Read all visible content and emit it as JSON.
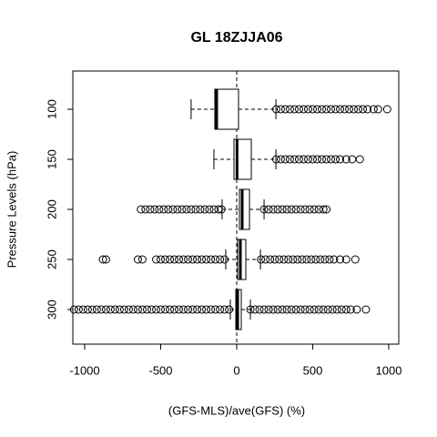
{
  "chart_data": {
    "type": "boxplot",
    "title": "GL 18ZJJA06",
    "xlabel": "(GFS-MLS)/ave(GFS) (%)",
    "ylabel": "Pressure Levels (hPa)",
    "categories": [
      "100",
      "150",
      "200",
      "250",
      "300"
    ],
    "xlim": [
      -1078,
      1066
    ],
    "xticks": [
      -1000,
      -500,
      0,
      500,
      1000
    ],
    "vline": 0,
    "boxes": [
      {
        "whislo": -300,
        "q1": -144,
        "med": -132,
        "q3": 12,
        "whishi": 258,
        "outliers": [
          260,
          290,
          320,
          350,
          380,
          410,
          440,
          470,
          500,
          530,
          560,
          590,
          620,
          650,
          680,
          710,
          740,
          770,
          800,
          830,
          860,
          900,
          930,
          990
        ]
      },
      {
        "whislo": -150,
        "q1": -18,
        "med": 2,
        "q3": 96,
        "whishi": 258,
        "outliers": [
          260,
          290,
          320,
          350,
          380,
          410,
          440,
          470,
          500,
          530,
          560,
          590,
          620,
          650,
          680,
          720,
          760,
          810
        ]
      },
      {
        "whislo": -96,
        "q1": 18,
        "med": 36,
        "q3": 84,
        "whishi": 180,
        "outliers": [
          -630,
          -600,
          -570,
          -540,
          -510,
          -480,
          -450,
          -420,
          -390,
          -360,
          -330,
          -300,
          -270,
          -240,
          -210,
          -180,
          -150,
          -120,
          -100,
          180,
          210,
          240,
          270,
          300,
          330,
          360,
          390,
          420,
          450,
          480,
          510,
          540,
          570,
          590
        ]
      },
      {
        "whislo": -72,
        "q1": 6,
        "med": 24,
        "q3": 60,
        "whishi": 156,
        "outliers": [
          -880,
          -860,
          -650,
          -620,
          -530,
          -500,
          -470,
          -440,
          -410,
          -380,
          -350,
          -320,
          -290,
          -260,
          -230,
          -200,
          -170,
          -140,
          -110,
          -80,
          160,
          190,
          220,
          250,
          280,
          310,
          340,
          370,
          400,
          430,
          460,
          490,
          520,
          550,
          580,
          610,
          640,
          680,
          720,
          780
        ]
      },
      {
        "whislo": -42,
        "q1": -6,
        "med": 6,
        "q3": 30,
        "whishi": 90,
        "outliers": [
          -1070,
          -1040,
          -1010,
          -980,
          -950,
          -920,
          -890,
          -860,
          -830,
          -800,
          -770,
          -740,
          -710,
          -680,
          -650,
          -620,
          -590,
          -560,
          -530,
          -500,
          -470,
          -440,
          -410,
          -380,
          -350,
          -320,
          -290,
          -260,
          -230,
          -200,
          -170,
          -140,
          -110,
          -80,
          -50,
          90,
          120,
          150,
          180,
          210,
          240,
          270,
          300,
          330,
          360,
          390,
          420,
          450,
          480,
          510,
          540,
          570,
          600,
          630,
          660,
          690,
          720,
          750,
          790,
          850
        ]
      }
    ]
  }
}
